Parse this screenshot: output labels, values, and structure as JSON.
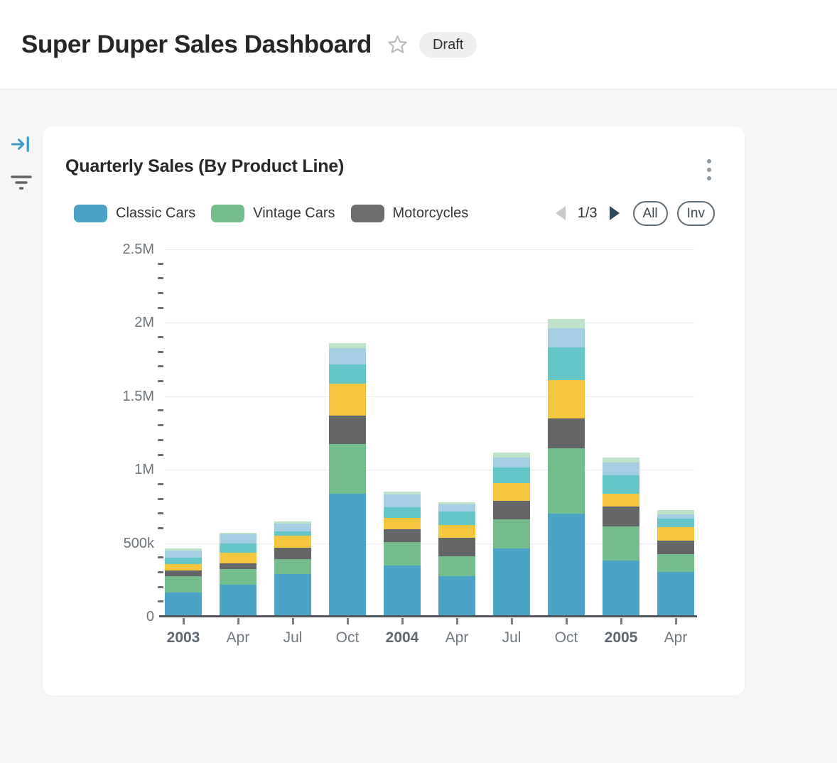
{
  "header": {
    "title": "Super Duper Sales Dashboard",
    "badge": "Draft",
    "icons": {
      "star": "star-outline"
    }
  },
  "sidebar": {
    "icons": [
      {
        "name": "collapse-panel-icon",
        "glyph": "arrow-to-bar",
        "color": "#3a9cc4"
      },
      {
        "name": "filter-icon",
        "glyph": "funnel-lines",
        "color": "#606366"
      }
    ]
  },
  "card": {
    "title": "Quarterly Sales (By Product Line)",
    "menu_icon": "kebab-vertical-dots",
    "legend": {
      "items": [
        {
          "label": "Classic Cars",
          "color": "#4ba3c7"
        },
        {
          "label": "Vintage Cars",
          "color": "#73bd8d"
        },
        {
          "label": "Motorcycles",
          "color": "#6a6c6e"
        }
      ],
      "pager": {
        "label": "1/3",
        "prev_enabled": false,
        "next_enabled": true
      },
      "buttons": {
        "all": "All",
        "invert": "Inv"
      }
    }
  },
  "chart_data": {
    "type": "bar",
    "stacked": true,
    "title": "Quarterly Sales (By Product Line)",
    "categories": [
      "2003",
      "Apr",
      "Jul",
      "Oct",
      "2004",
      "Apr",
      "Jul",
      "Oct",
      "2005",
      "Apr"
    ],
    "bold_categories": [
      "2003",
      "2004",
      "2005"
    ],
    "series": [
      {
        "name": "Classic Cars",
        "color": "#4ba3c7",
        "values": [
          157000,
          210000,
          281000,
          827000,
          339000,
          266000,
          457000,
          692000,
          374000,
          297000
        ]
      },
      {
        "name": "Vintage Cars",
        "color": "#73bd8d",
        "values": [
          108000,
          103000,
          103000,
          337000,
          161000,
          134000,
          194000,
          444000,
          233000,
          120000
        ]
      },
      {
        "name": "Motorcycles",
        "color": "#636567",
        "values": [
          41000,
          40000,
          78000,
          197000,
          84000,
          129000,
          129000,
          205000,
          131000,
          91000
        ]
      },
      {
        "name": "Unlabeled 4 (yellow)",
        "color": "#f4c63e",
        "values": [
          43000,
          71000,
          79000,
          216000,
          77000,
          84000,
          118000,
          258000,
          88000,
          90000
        ]
      },
      {
        "name": "Unlabeled 5 (teal)",
        "color": "#64c6c6",
        "values": [
          44000,
          63000,
          32000,
          131000,
          73000,
          92000,
          108000,
          223000,
          125000,
          59000
        ]
      },
      {
        "name": "Unlabeled 6 (light blue)",
        "color": "#a4cfe3",
        "values": [
          46000,
          64000,
          52000,
          109000,
          89000,
          50000,
          68000,
          132000,
          88000,
          32000
        ]
      },
      {
        "name": "Unlabeled 7 (light green)",
        "color": "#bfe3c8",
        "values": [
          14000,
          10000,
          16000,
          35000,
          19000,
          16000,
          32000,
          61000,
          35000,
          29000
        ]
      }
    ],
    "ylabel": "",
    "xlabel": "",
    "ylim": [
      0,
      2500000
    ],
    "y_tick_values": [
      0,
      500000,
      1000000,
      1500000,
      2000000,
      2500000
    ],
    "y_tick_labels": [
      "0",
      "500k",
      "1M",
      "1.5M",
      "2M",
      "2.5M"
    ],
    "minor_tick_step": 100000,
    "grid": true,
    "legend_position": "top",
    "legend_pagination": "1/3"
  }
}
